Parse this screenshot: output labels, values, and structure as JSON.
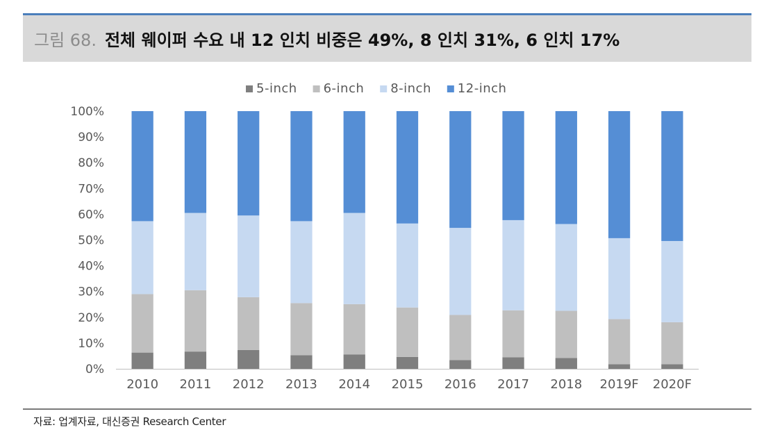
{
  "header": {
    "figure_label": "그림 68.",
    "title": "전체 웨이퍼 수요 내 12 인치 비중은 49%, 8 인치 31%, 6 인치 17%"
  },
  "source": "자료: 업계자료, 대신증권 Research Center",
  "chart_data": {
    "type": "bar",
    "stacked": true,
    "title": "",
    "xlabel": "",
    "ylabel": "",
    "ylim": [
      0,
      100
    ],
    "yticks": [
      "0%",
      "10%",
      "20%",
      "30%",
      "40%",
      "50%",
      "60%",
      "70%",
      "80%",
      "90%",
      "100%"
    ],
    "legend_position": "top",
    "grid": false,
    "categories": [
      "2010",
      "2011",
      "2012",
      "2013",
      "2014",
      "2015",
      "2016",
      "2017",
      "2018",
      "2019F",
      "2020F"
    ],
    "series": [
      {
        "name": "5-inch",
        "color": "#7f7f7f",
        "values": [
          6.3,
          6.7,
          7.3,
          5.3,
          5.6,
          4.6,
          3.4,
          4.5,
          4.2,
          1.8,
          1.8
        ]
      },
      {
        "name": "6-inch",
        "color": "#bfbfbf",
        "values": [
          22.7,
          23.8,
          20.5,
          20.2,
          19.5,
          19.2,
          17.5,
          18.2,
          18.3,
          17.5,
          16.3
        ]
      },
      {
        "name": "8-inch",
        "color": "#c6d9f1",
        "values": [
          28.3,
          30.0,
          31.7,
          31.8,
          35.4,
          32.6,
          33.8,
          35.0,
          33.7,
          31.4,
          31.5
        ]
      },
      {
        "name": "12-inch",
        "color": "#558ed5",
        "values": [
          42.7,
          39.5,
          40.5,
          42.7,
          39.5,
          43.6,
          45.3,
          42.3,
          43.8,
          49.3,
          50.4
        ]
      }
    ]
  }
}
